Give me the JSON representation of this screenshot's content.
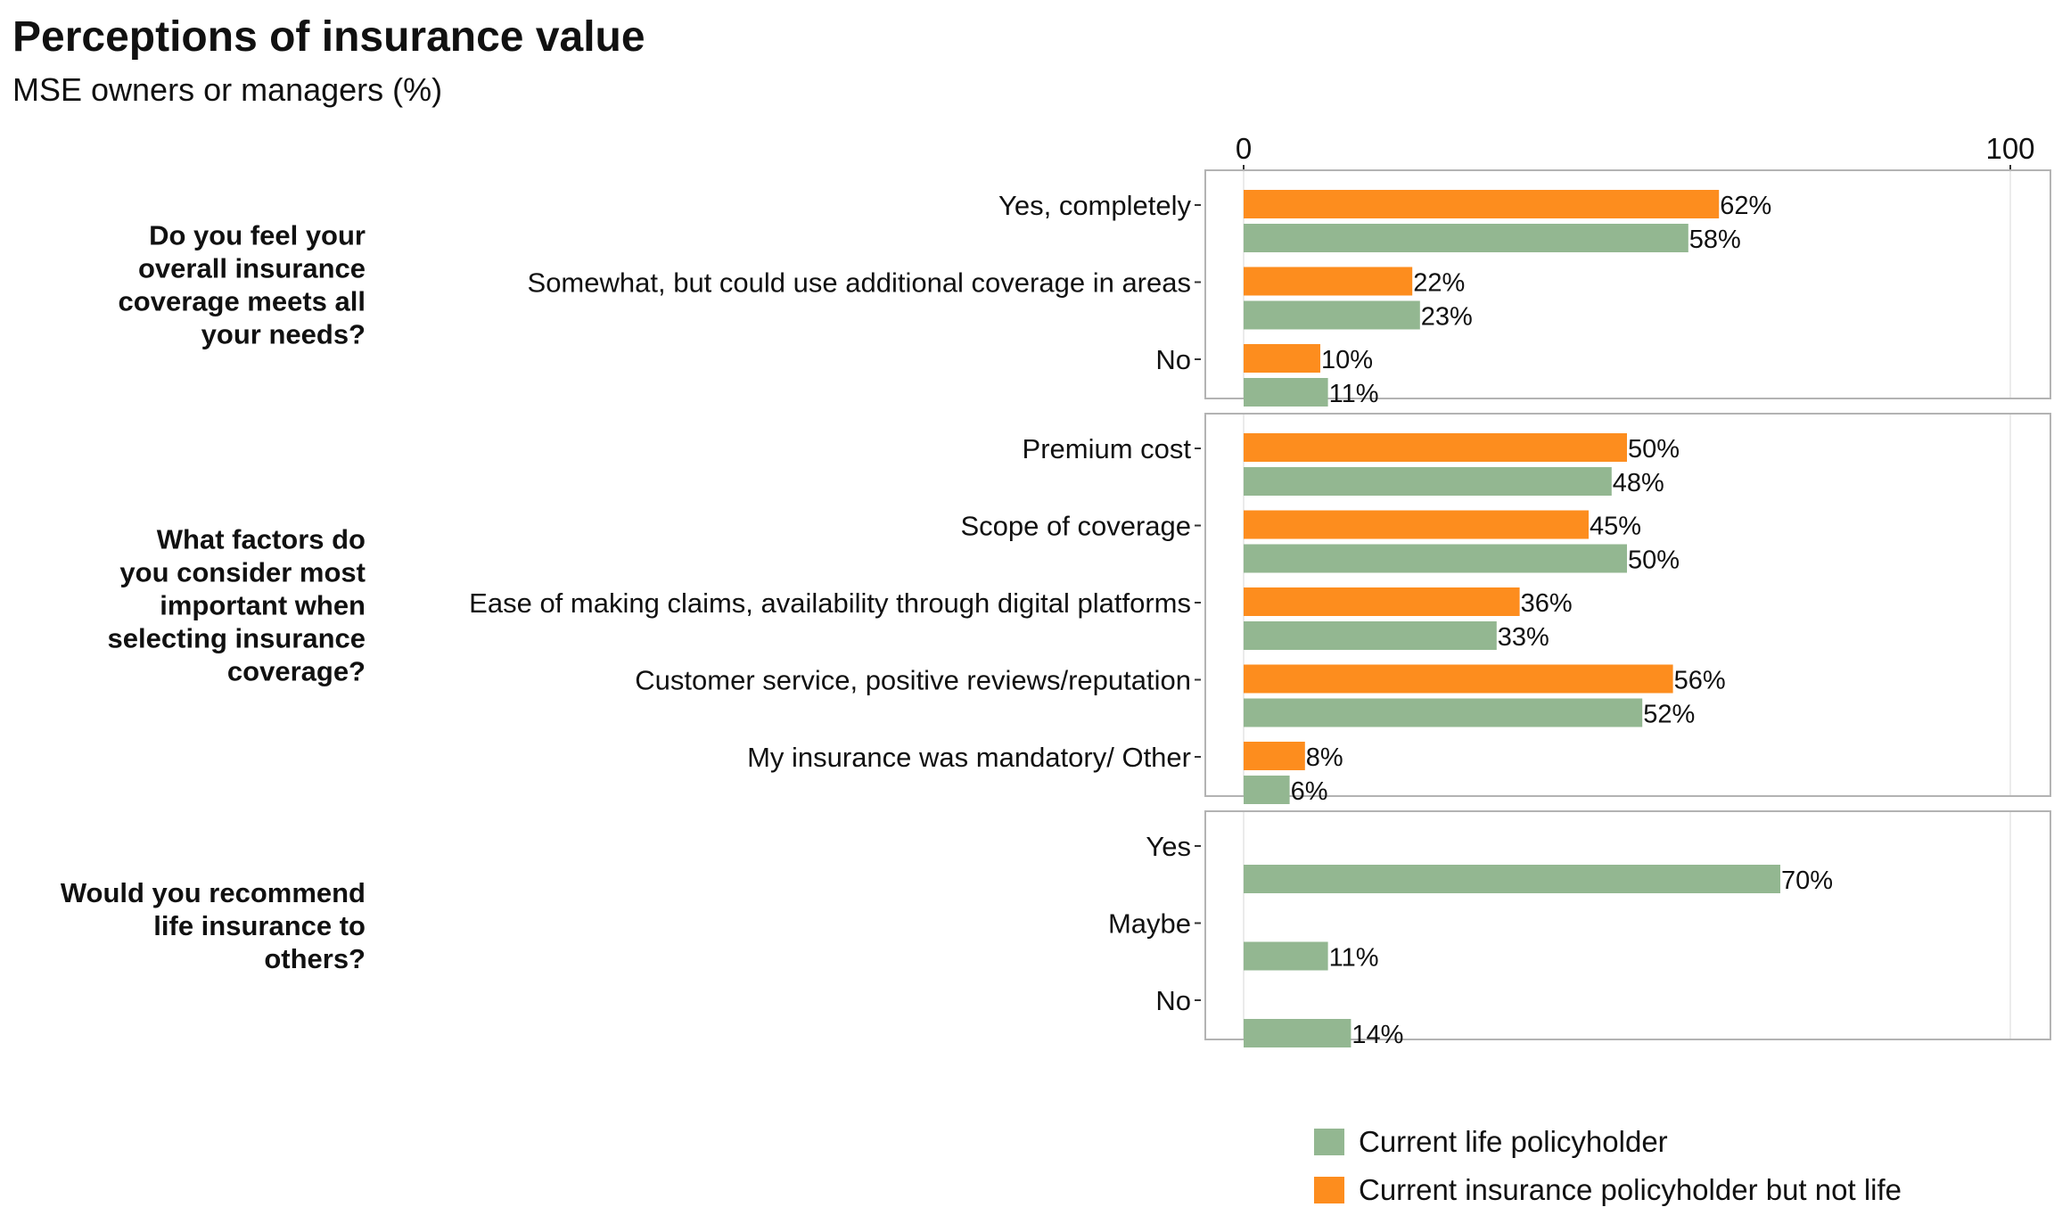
{
  "title": "Perceptions of insurance value",
  "subtitle": "MSE owners or managers (%)",
  "chart_data": {
    "type": "bar",
    "orientation": "horizontal",
    "grouped": true,
    "xlim": [
      0,
      100
    ],
    "x_ticks": [
      0,
      100
    ],
    "value_suffix": "%",
    "colors": {
      "life": "#93b791",
      "non_life": "#fd8d1e",
      "panel_border": "#b3b3b3",
      "grid": "#ebebeb"
    },
    "legend": {
      "position": "bottom",
      "entries": [
        {
          "key": "life",
          "label": "Current life policyholder"
        },
        {
          "key": "non_life",
          "label": "Current insurance policyholder but not life"
        }
      ]
    },
    "panels": [
      {
        "question": "Do you feel your overall insurance coverage meets all your needs?",
        "question_lines": [
          "Do you feel your",
          "overall insurance",
          "coverage meets all",
          "your needs?"
        ],
        "categories": [
          {
            "label": "Yes, completely",
            "non_life": 62,
            "life": 58
          },
          {
            "label": "Somewhat, but could use additional coverage in areas",
            "non_life": 22,
            "life": 23
          },
          {
            "label": "No",
            "non_life": 10,
            "life": 11
          }
        ]
      },
      {
        "question": "What factors do you consider most important when selecting insurance coverage?",
        "question_lines": [
          "What factors do",
          "you consider most",
          "important when",
          "selecting insurance",
          "coverage?"
        ],
        "categories": [
          {
            "label": "Premium cost",
            "non_life": 50,
            "life": 48
          },
          {
            "label": "Scope of coverage",
            "non_life": 45,
            "life": 50
          },
          {
            "label": "Ease of making claims, availability through digital platforms",
            "non_life": 36,
            "life": 33
          },
          {
            "label": "Customer service, positive reviews/reputation",
            "non_life": 56,
            "life": 52
          },
          {
            "label": "My insurance was mandatory/ Other",
            "non_life": 8,
            "life": 6
          }
        ]
      },
      {
        "question": "Would you recommend life insurance to others?",
        "question_lines": [
          "Would you recommend",
          "life insurance to",
          "others?"
        ],
        "categories": [
          {
            "label": "Yes",
            "non_life": null,
            "life": 70
          },
          {
            "label": "Maybe",
            "non_life": null,
            "life": 11
          },
          {
            "label": "No",
            "non_life": null,
            "life": 14
          }
        ]
      }
    ]
  }
}
